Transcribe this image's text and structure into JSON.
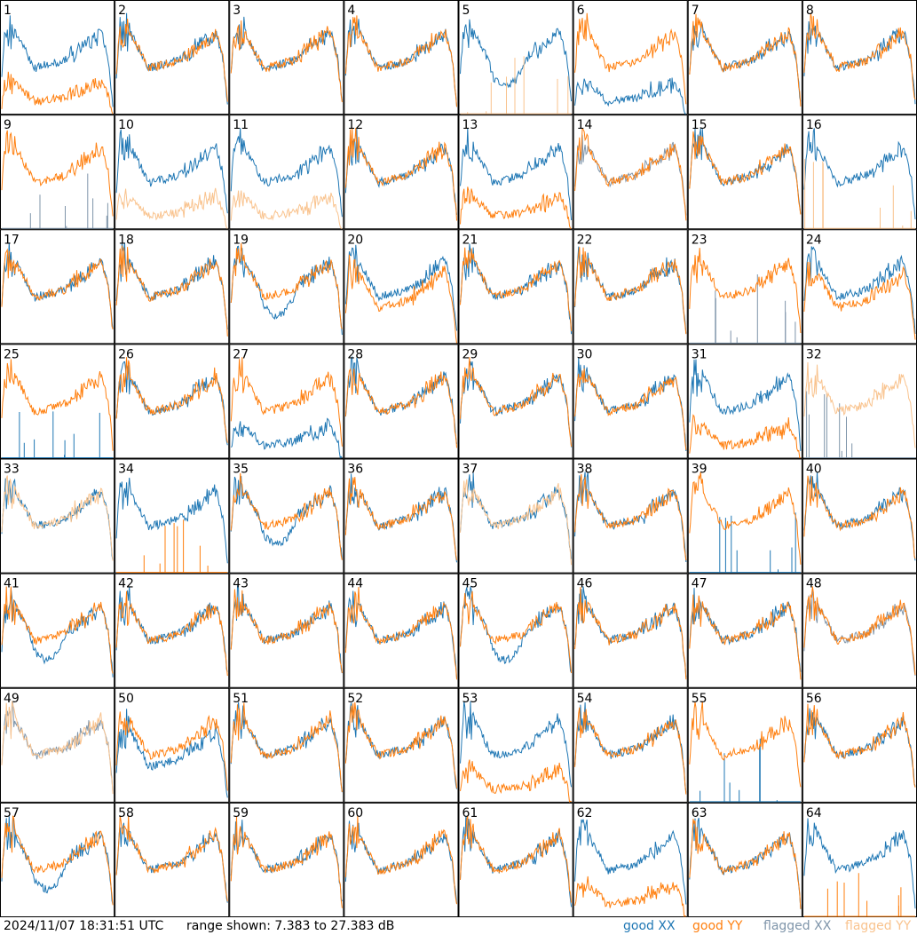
{
  "footer": {
    "timestamp": "2024/11/07 18:31:51 UTC",
    "range_text": "range shown: 7.383 to 27.383 dB"
  },
  "legend": [
    {
      "label": "good XX",
      "color": "#1f77b4"
    },
    {
      "label": "good YY",
      "color": "#ff7f0e"
    },
    {
      "label": "flagged XX",
      "color": "#7f95aa"
    },
    {
      "label": "flagged YY",
      "color": "#f9c38e"
    }
  ],
  "chart_data": {
    "type": "line",
    "layout": "small-multiples 8x8",
    "ylim": [
      7.383,
      27.383
    ],
    "y_unit": "dB",
    "grid": false,
    "legend_position": "bottom-right",
    "series_colors": {
      "good_xx": "#1f77b4",
      "good_yy": "#ff7f0e",
      "flagged_xx": "#7f95aa",
      "flagged_yy": "#f9c38e"
    },
    "panels": [
      {
        "label": "1",
        "xx": "good",
        "yy": "good",
        "yy_shape": "low",
        "yy_hash": "spiky"
      },
      {
        "label": "2",
        "xx": "good",
        "yy": "good"
      },
      {
        "label": "3",
        "xx": "good",
        "yy": "good"
      },
      {
        "label": "4",
        "xx": "good",
        "yy": "good"
      },
      {
        "label": "5",
        "xx": "good",
        "yy": "flagged",
        "yy_shape": "spikes",
        "xx_shape": "dip"
      },
      {
        "label": "6",
        "xx": "good",
        "yy": "good",
        "xx_shape": "low"
      },
      {
        "label": "7",
        "xx": "good",
        "yy": "good"
      },
      {
        "label": "8",
        "xx": "good",
        "yy": "good",
        "yy_hash": "spiky"
      },
      {
        "label": "9",
        "xx": "flagged",
        "yy": "good",
        "xx_shape": "spikes"
      },
      {
        "label": "10",
        "xx": "good",
        "yy": "flagged",
        "yy_shape": "low"
      },
      {
        "label": "11",
        "xx": "good",
        "yy": "flagged",
        "yy_shape": "low"
      },
      {
        "label": "12",
        "xx": "good",
        "yy": "good"
      },
      {
        "label": "13",
        "xx": "good",
        "yy": "good",
        "yy_shape": "low"
      },
      {
        "label": "14",
        "xx": "flagged",
        "yy": "good"
      },
      {
        "label": "15",
        "xx": "good",
        "yy": "good"
      },
      {
        "label": "16",
        "xx": "good",
        "yy": "flagged",
        "yy_shape": "spikes"
      },
      {
        "label": "17",
        "xx": "good",
        "yy": "good"
      },
      {
        "label": "18",
        "xx": "good",
        "yy": "good"
      },
      {
        "label": "19",
        "xx": "good",
        "yy": "good",
        "xx_shape": "dip"
      },
      {
        "label": "20",
        "xx": "good",
        "yy": "good",
        "yy_shape": "mid"
      },
      {
        "label": "21",
        "xx": "good",
        "yy": "good"
      },
      {
        "label": "22",
        "xx": "good",
        "yy": "good"
      },
      {
        "label": "23",
        "xx": "flagged",
        "yy": "good",
        "xx_shape": "spikes"
      },
      {
        "label": "24",
        "xx": "good",
        "yy": "good",
        "yy_shape": "mid"
      },
      {
        "label": "25",
        "xx": "good",
        "yy": "good",
        "xx_shape": "spikes"
      },
      {
        "label": "26",
        "xx": "good",
        "yy": "good"
      },
      {
        "label": "27",
        "xx": "good",
        "yy": "good",
        "xx_shape": "low"
      },
      {
        "label": "28",
        "xx": "good",
        "yy": "good"
      },
      {
        "label": "29",
        "xx": "good",
        "yy": "good"
      },
      {
        "label": "30",
        "xx": "good",
        "yy": "good"
      },
      {
        "label": "31",
        "xx": "good",
        "yy": "good",
        "yy_shape": "low"
      },
      {
        "label": "32",
        "xx": "flagged",
        "yy": "flagged",
        "xx_shape": "spikes"
      },
      {
        "label": "33",
        "xx": "good",
        "yy": "flagged"
      },
      {
        "label": "34",
        "xx": "good",
        "yy": "good",
        "yy_shape": "spikes"
      },
      {
        "label": "35",
        "xx": "good",
        "yy": "good",
        "xx_shape": "dip"
      },
      {
        "label": "36",
        "xx": "good",
        "yy": "good"
      },
      {
        "label": "37",
        "xx": "good",
        "yy": "flagged"
      },
      {
        "label": "38",
        "xx": "good",
        "yy": "good"
      },
      {
        "label": "39",
        "xx": "good",
        "yy": "good",
        "xx_shape": "spikes"
      },
      {
        "label": "40",
        "xx": "good",
        "yy": "good"
      },
      {
        "label": "41",
        "xx": "good",
        "yy": "good",
        "xx_shape": "dip"
      },
      {
        "label": "42",
        "xx": "good",
        "yy": "good"
      },
      {
        "label": "43",
        "xx": "good",
        "yy": "good"
      },
      {
        "label": "44",
        "xx": "good",
        "yy": "good"
      },
      {
        "label": "45",
        "xx": "good",
        "yy": "good",
        "xx_shape": "dip"
      },
      {
        "label": "46",
        "xx": "good",
        "yy": "good"
      },
      {
        "label": "47",
        "xx": "good",
        "yy": "good"
      },
      {
        "label": "48",
        "xx": "flagged",
        "yy": "good"
      },
      {
        "label": "49",
        "xx": "flagged",
        "yy": "flagged"
      },
      {
        "label": "50",
        "xx": "good",
        "yy": "good",
        "xx_shape": "mid"
      },
      {
        "label": "51",
        "xx": "good",
        "yy": "good"
      },
      {
        "label": "52",
        "xx": "good",
        "yy": "good"
      },
      {
        "label": "53",
        "xx": "good",
        "yy": "good",
        "yy_shape": "low"
      },
      {
        "label": "54",
        "xx": "good",
        "yy": "good"
      },
      {
        "label": "55",
        "xx": "good",
        "yy": "good",
        "xx_shape": "spikes"
      },
      {
        "label": "56",
        "xx": "good",
        "yy": "good"
      },
      {
        "label": "57",
        "xx": "good",
        "yy": "good",
        "xx_shape": "dip"
      },
      {
        "label": "58",
        "xx": "good",
        "yy": "good"
      },
      {
        "label": "59",
        "xx": "good",
        "yy": "good"
      },
      {
        "label": "60",
        "xx": "good",
        "yy": "good"
      },
      {
        "label": "61",
        "xx": "good",
        "yy": "good"
      },
      {
        "label": "62",
        "xx": "good",
        "yy": "good",
        "yy_shape": "low"
      },
      {
        "label": "63",
        "xx": "good",
        "yy": "good"
      },
      {
        "label": "64",
        "xx": "good",
        "yy": "good",
        "yy_shape": "spikes"
      }
    ]
  }
}
